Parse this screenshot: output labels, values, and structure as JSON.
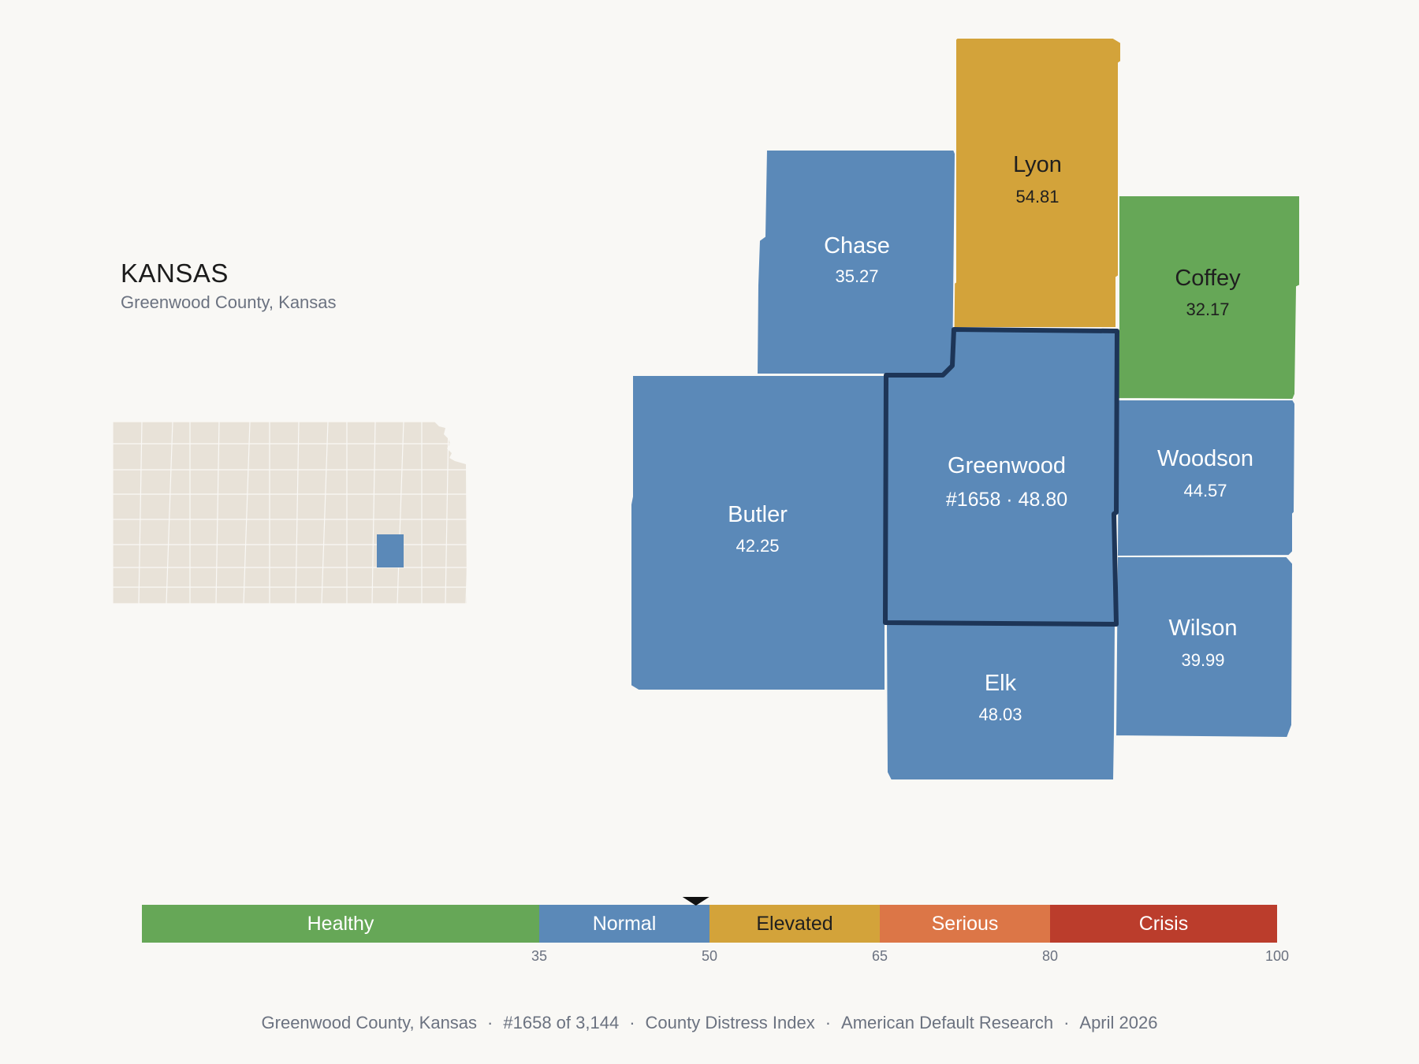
{
  "header": {
    "state": "KANSAS",
    "subtitle": "Greenwood County, Kansas"
  },
  "colors": {
    "background": "#f9f8f5",
    "healthy": "#66a757",
    "normal": "#5b89b8",
    "elevated": "#d3a33a",
    "serious": "#dc7647",
    "crisis": "#bb3d2c",
    "inset_fill": "#e8e2d8",
    "highlight_border": "#1d3557"
  },
  "counties": [
    {
      "name": "Lyon",
      "value": "54.81",
      "category": "elevated"
    },
    {
      "name": "Chase",
      "value": "35.27",
      "category": "normal"
    },
    {
      "name": "Coffey",
      "value": "32.17",
      "category": "healthy"
    },
    {
      "name": "Butler",
      "value": "42.25",
      "category": "normal"
    },
    {
      "name": "Greenwood",
      "value": "#1658 · 48.80",
      "category": "normal",
      "selected": true
    },
    {
      "name": "Woodson",
      "value": "44.57",
      "category": "normal"
    },
    {
      "name": "Wilson",
      "value": "39.99",
      "category": "normal"
    },
    {
      "name": "Elk",
      "value": "48.03",
      "category": "normal"
    }
  ],
  "scale": {
    "bands": [
      {
        "label": "Healthy",
        "from": 0,
        "to": 35,
        "color": "#66a757"
      },
      {
        "label": "Normal",
        "from": 35,
        "to": 50,
        "color": "#5b89b8"
      },
      {
        "label": "Elevated",
        "from": 50,
        "to": 65,
        "color": "#d3a33a"
      },
      {
        "label": "Serious",
        "from": 65,
        "to": 80,
        "color": "#dc7647"
      },
      {
        "label": "Crisis",
        "from": 80,
        "to": 100,
        "color": "#bb3d2c"
      }
    ],
    "ticks": [
      "35",
      "50",
      "65",
      "80",
      "100"
    ],
    "marker_value": 48.8
  },
  "footer": [
    "Greenwood County, Kansas",
    "#1658 of 3,144",
    "County Distress Index",
    "American Default Research",
    "April 2026"
  ]
}
